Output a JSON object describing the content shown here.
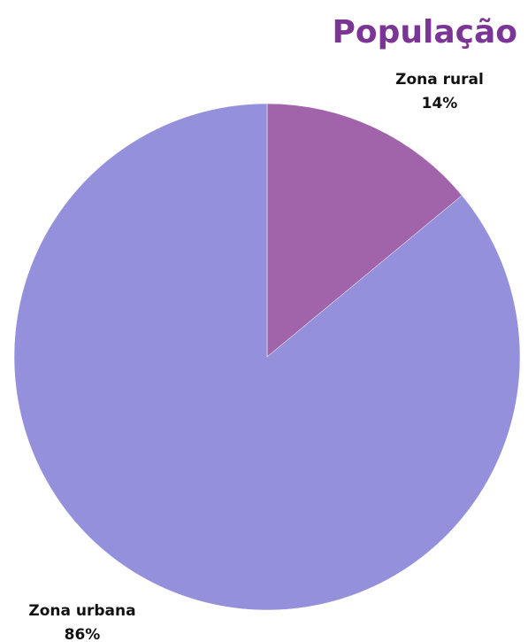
{
  "chart_data": {
    "type": "pie",
    "title": "População",
    "categories": [
      "Zona rural",
      "Zona urbana"
    ],
    "values": [
      14,
      86
    ],
    "value_labels": [
      "14%",
      "86%"
    ],
    "colors": [
      "#a163aa",
      "#9590dc"
    ]
  }
}
